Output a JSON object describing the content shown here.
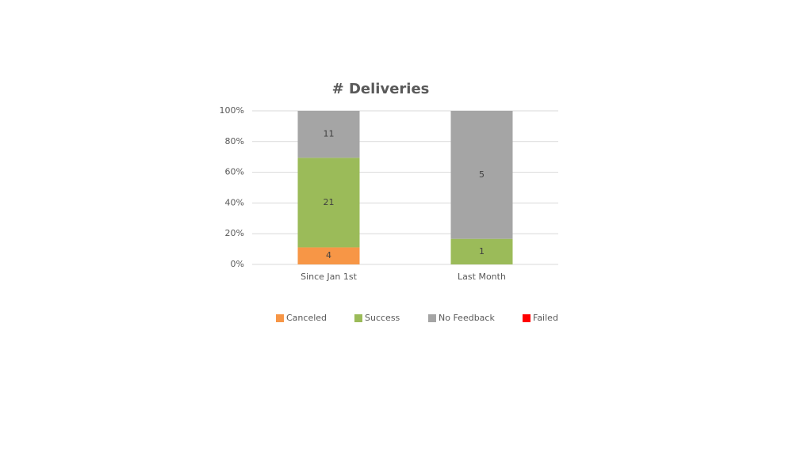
{
  "chart_data": {
    "type": "stacked_percent_bar",
    "title": "# Deliveries",
    "categories": [
      "Since Jan 1st",
      "Last Month"
    ],
    "series": [
      {
        "name": "Canceled",
        "color": "#f79646",
        "values": [
          4,
          0
        ]
      },
      {
        "name": "Success",
        "color": "#9bbb59",
        "values": [
          21,
          1
        ]
      },
      {
        "name": "No Feedback",
        "color": "#a5a5a5",
        "values": [
          11,
          5
        ]
      },
      {
        "name": "Failed",
        "color": "#ff0000",
        "values": [
          0,
          0
        ]
      }
    ],
    "ylim": [
      0,
      100
    ],
    "yticks": [
      {
        "value": 0,
        "label": "0%"
      },
      {
        "value": 20,
        "label": "20%"
      },
      {
        "value": 40,
        "label": "40%"
      },
      {
        "value": 60,
        "label": "60%"
      },
      {
        "value": 80,
        "label": "80%"
      },
      {
        "value": 100,
        "label": "100%"
      }
    ],
    "grid": true,
    "legend": "bottom"
  }
}
